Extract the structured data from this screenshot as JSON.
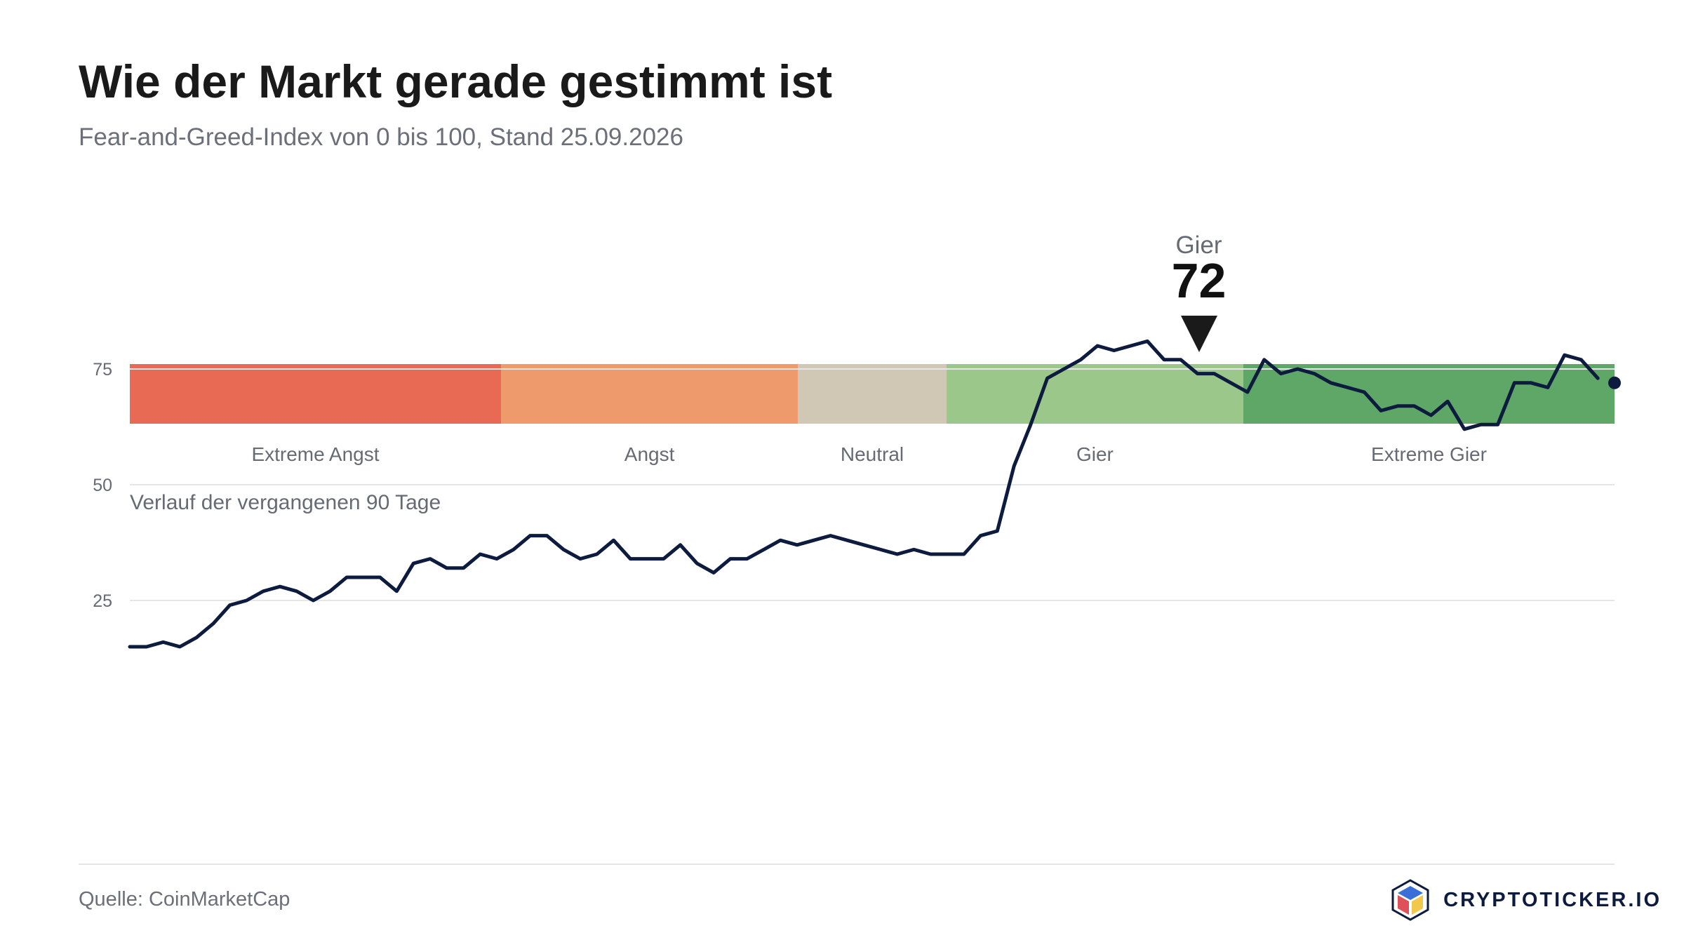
{
  "header": {
    "title": "Wie der Markt gerade gestimmt ist",
    "subtitle": "Fear-and-Greed-Index von 0 bis 100, Stand 25.09.2026"
  },
  "gauge": {
    "value": 72,
    "label": "Gier",
    "min": 0,
    "max": 100,
    "zones": [
      {
        "name": "Extreme Angst",
        "from": 0,
        "to": 25,
        "color": "#e86a54"
      },
      {
        "name": "Angst",
        "from": 25,
        "to": 45,
        "color": "#ee9a6d"
      },
      {
        "name": "Neutral",
        "from": 45,
        "to": 55,
        "color": "#d0c8b5"
      },
      {
        "name": "Gier",
        "from": 55,
        "to": 75,
        "color": "#9cc78b"
      },
      {
        "name": "Extreme Gier",
        "from": 75,
        "to": 100,
        "color": "#5fa767"
      }
    ]
  },
  "history": {
    "title": "Verlauf der vergangenen 90 Tage",
    "line_color": "#0d1b3e",
    "grid_color": "#e6e6e6"
  },
  "chart_data": {
    "type": "line",
    "yticks": [
      25,
      50,
      75
    ],
    "ylim": [
      0,
      100
    ],
    "xlim": [
      1,
      90
    ],
    "grid": true,
    "series": [
      {
        "values": [
          15,
          15,
          16,
          15,
          17,
          20,
          24,
          25,
          27,
          28,
          27,
          25,
          27,
          30,
          30,
          30,
          27,
          33,
          34,
          32,
          32,
          35,
          34,
          36,
          39,
          39,
          36,
          34,
          35,
          38,
          34,
          34,
          34,
          37,
          33,
          31,
          34,
          34,
          36,
          38,
          37,
          38,
          39,
          38,
          37,
          36,
          35,
          36,
          35,
          35,
          35,
          39,
          40,
          54,
          63,
          73,
          75,
          77,
          80,
          79,
          80,
          81,
          77,
          77,
          74,
          74,
          72,
          70,
          77,
          74,
          75,
          74,
          72,
          71,
          70,
          66,
          67,
          67,
          65,
          68,
          62,
          63,
          63,
          72,
          72,
          71,
          78,
          77,
          73,
          72
        ]
      }
    ]
  },
  "footer": {
    "source": "Quelle: CoinMarketCap",
    "brand": "CRYPTOTICKER.IO"
  }
}
